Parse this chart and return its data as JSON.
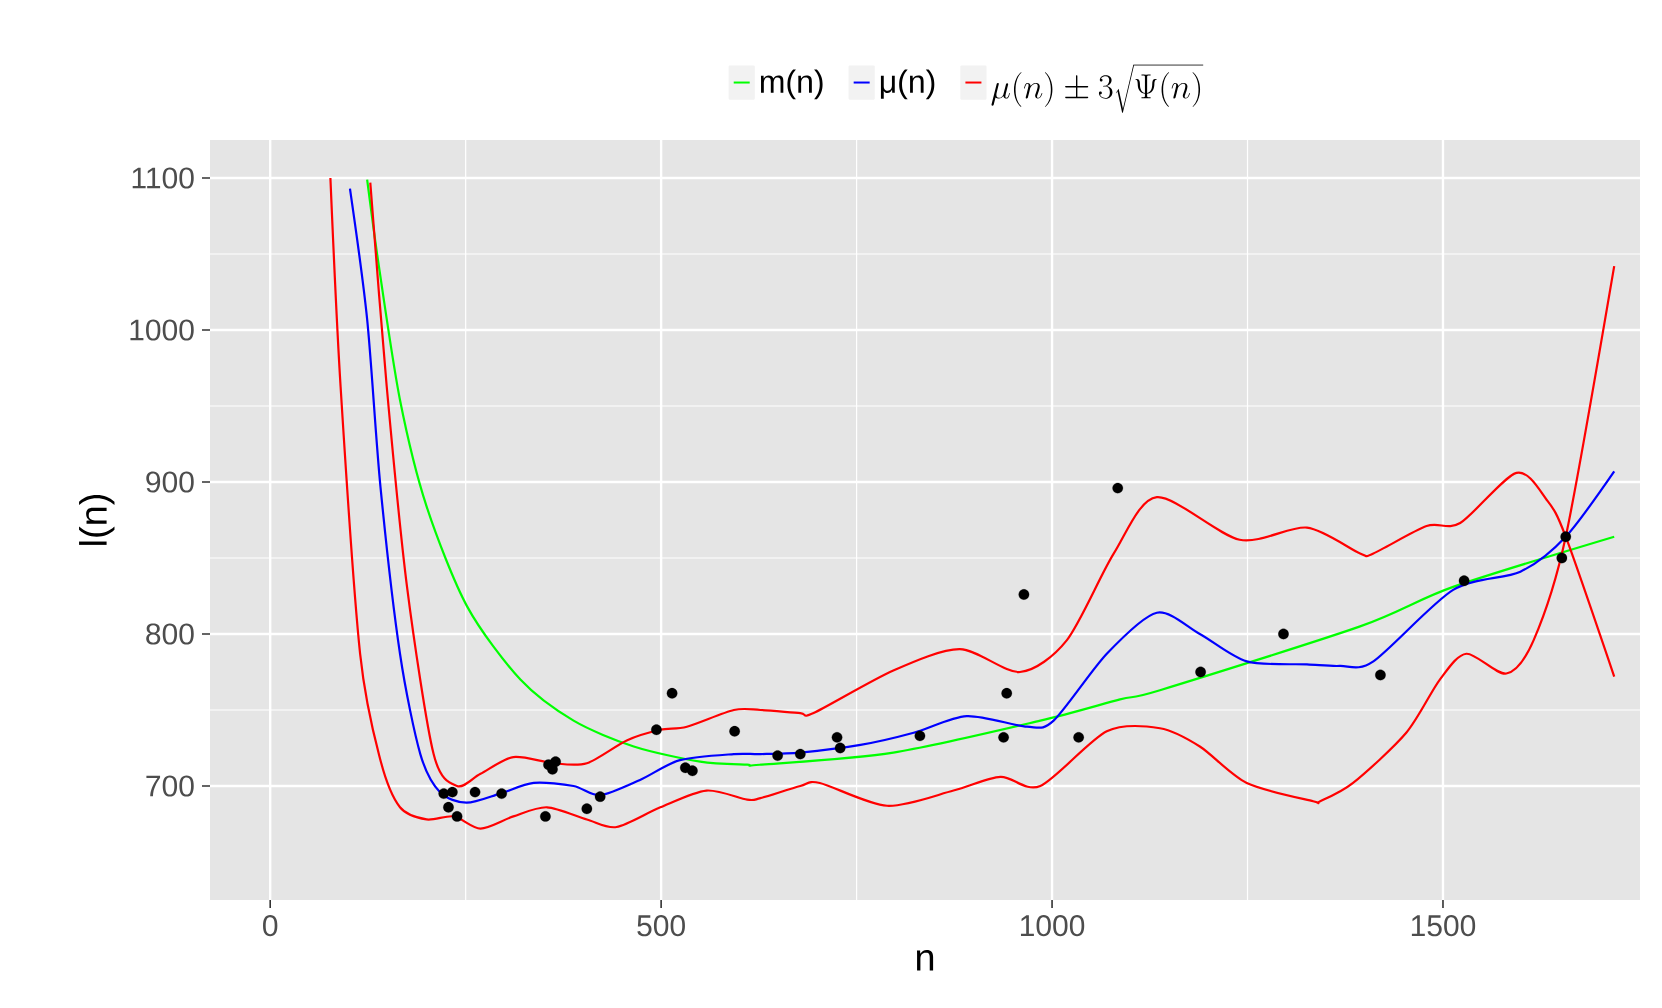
{
  "chart_data": {
    "type": "line",
    "xlabel": "n",
    "ylabel": "l(n)",
    "xlim": [
      -77,
      1752
    ],
    "ylim": [
      625,
      1125
    ],
    "xticks": [
      0,
      500,
      1000,
      1500
    ],
    "yticks": [
      700,
      800,
      900,
      1000,
      1100
    ],
    "grid": true,
    "legend": "top",
    "line_style": "solid",
    "series": [
      {
        "name": "m(n)",
        "color": "#00ff00",
        "x": [
          124,
          139,
          166,
          200,
          252,
          320,
          388,
          465,
          550,
          610,
          627,
          797,
          985,
          1087,
          1138,
          1394,
          1513,
          1719
        ],
        "values": [
          1099,
          1042,
          954,
          884,
          818,
          770,
          743,
          726,
          716,
          714,
          714,
          722,
          743,
          757,
          763,
          805,
          831,
          864
        ]
      },
      {
        "name": "μ(n)",
        "color": "#0000ff",
        "x": [
          102,
          124,
          141,
          166,
          192,
          217,
          251,
          294,
          337,
          388,
          422,
          473,
          524,
          593,
          627,
          678,
          755,
          823,
          891,
          968,
          1002,
          1070,
          1134,
          1189,
          1249,
          1326,
          1368,
          1411,
          1513,
          1599,
          1657,
          1719
        ],
        "values": [
          1093,
          1007,
          897,
          787,
          721,
          696,
          689,
          695,
          702,
          700,
          694,
          704,
          717,
          721,
          721,
          722,
          727,
          735,
          746,
          739,
          743,
          787,
          814,
          800,
          782,
          780,
          779,
          782,
          829,
          841,
          864,
          907
        ]
      },
      {
        "name": "\\mu(n)\\pm 3\\sqrt{\\Psi(n)}",
        "color": "#ff0000",
        "x": [
          128,
          149,
          175,
          209,
          239,
          269,
          311,
          362,
          405,
          456,
          499,
          533,
          593,
          627,
          678,
          695,
          797,
          882,
          959,
          1019,
          1079,
          1134,
          1240,
          1326,
          1394,
          1411,
          1479,
          1522,
          1594,
          1633,
          1657,
          1719
        ],
        "values": [
          1097,
          963,
          831,
          721,
          700,
          708,
          719,
          715,
          715,
          730,
          737,
          739,
          750,
          750,
          748,
          748,
          776,
          790,
          775,
          796,
          853,
          890,
          862,
          870,
          853,
          853,
          871,
          873,
          906,
          888,
          864,
          772
        ]
      },
      {
        "color": "#ff0000",
        "x": [
          77,
          90,
          115,
          141,
          166,
          200,
          235,
          269,
          311,
          354,
          405,
          443,
          499,
          558,
          610,
          627,
          678,
          703,
          789,
          874,
          934,
          985,
          1070,
          1138,
          1189,
          1249,
          1334,
          1343,
          1385,
          1453,
          1496,
          1530,
          1581,
          1616,
          1657,
          1719
        ],
        "values": [
          1100,
          963,
          787,
          717,
          686,
          678,
          680,
          672,
          680,
          686,
          678,
          673,
          686,
          697,
          691,
          692,
          700,
          702,
          687,
          697,
          706,
          700,
          736,
          738,
          726,
          702,
          690,
          690,
          702,
          735,
          770,
          787,
          774,
          796,
          864,
          1042
        ]
      },
      {
        "type": "scatter",
        "color": "#000000",
        "x": [
          222,
          228,
          239,
          233,
          262,
          296,
          352,
          356,
          361,
          365,
          405,
          422,
          494,
          514,
          531,
          540,
          594,
          649,
          678,
          725,
          729,
          831,
          938,
          942,
          964,
          1034,
          1084,
          1190,
          1296,
          1420,
          1527,
          1657,
          1652
        ],
        "values": [
          695,
          686,
          680,
          696,
          696,
          695,
          680,
          714,
          711,
          716,
          685,
          693,
          737,
          761,
          712,
          710,
          736,
          720,
          721,
          732,
          725,
          733,
          732,
          761,
          826,
          732,
          896,
          775,
          800,
          773,
          835,
          864,
          850
        ]
      }
    ]
  }
}
